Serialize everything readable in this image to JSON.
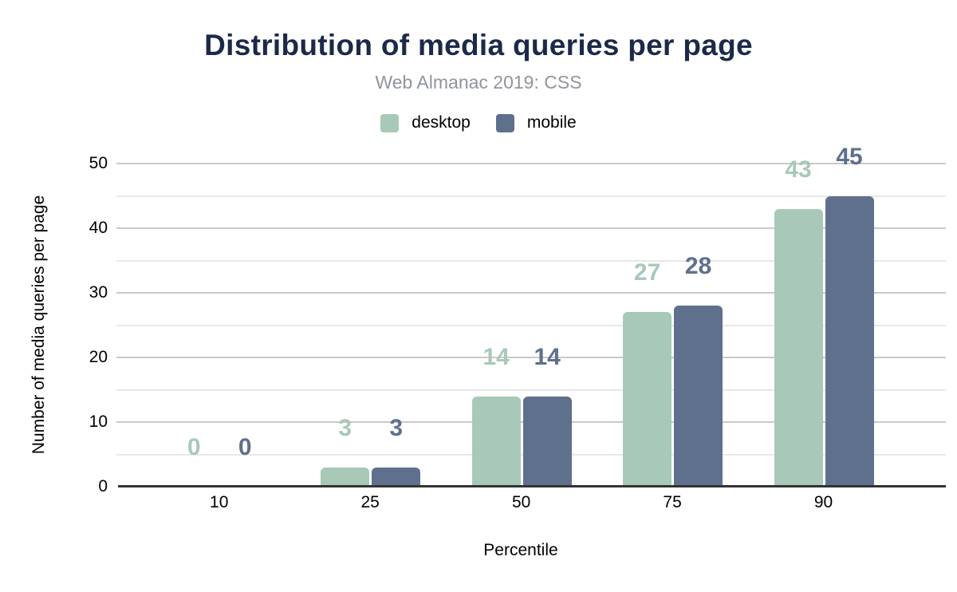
{
  "chart_data": {
    "type": "bar",
    "title": "Distribution of media queries per page",
    "subtitle": "Web Almanac 2019: CSS",
    "xlabel": "Percentile",
    "ylabel": "Number of media queries per page",
    "categories": [
      "10",
      "25",
      "50",
      "75",
      "90"
    ],
    "series": [
      {
        "name": "desktop",
        "color": "#a8c9b8",
        "values": [
          0,
          3,
          14,
          27,
          43
        ]
      },
      {
        "name": "mobile",
        "color": "#5f708c",
        "values": [
          0,
          3,
          14,
          28,
          45
        ]
      }
    ],
    "ylim": [
      0,
      50
    ],
    "yticks": [
      0,
      10,
      20,
      30,
      40,
      50
    ],
    "grid": "horizontal, major and minor lines",
    "legend_position": "top center",
    "data_labels": "shown above bars in series color",
    "colors": {
      "title": "#1c2a49",
      "subtitle": "#8f959b",
      "axis_text": "#000000",
      "gridline_major": "#c9c9c9",
      "gridline_minor": "#e8e8e8",
      "axis_line": "#333333",
      "background": "#ffffff"
    }
  }
}
